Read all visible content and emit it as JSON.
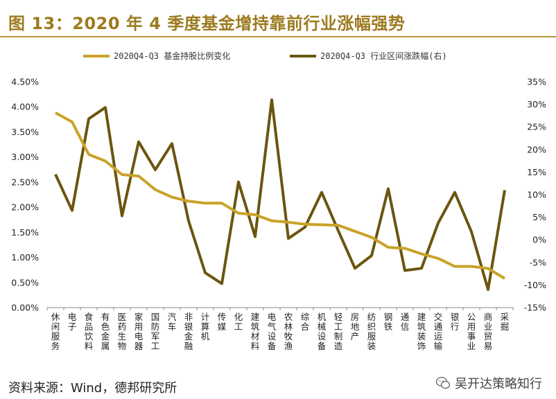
{
  "title": "图 13：2020 年 4 季度基金增持靠前行业涨幅强势",
  "source": "资料来源：Wind，德邦研究所",
  "watermark": "吴开达策略知行",
  "colors": {
    "series1": "#c9a227",
    "series2": "#6b5510",
    "title": "#9c7a1f"
  },
  "chart_data": {
    "type": "line",
    "categories": [
      "休闲服务",
      "电子",
      "食品饮料",
      "有色金属",
      "医药生物",
      "家用电器",
      "国防军工",
      "汽车",
      "非银金融",
      "计算机",
      "传媒",
      "化工",
      "建筑材料",
      "电气设备",
      "农林牧渔",
      "综合",
      "机械设备",
      "轻工制造",
      "房地产",
      "纺织服装",
      "钢铁",
      "通信",
      "建筑装饰",
      "交通运输",
      "银行",
      "公用事业",
      "商业贸易",
      "采掘"
    ],
    "series": [
      {
        "name": "2020Q4-Q3 基金持股比例变化",
        "axis": "left",
        "values": [
          3.88,
          3.7,
          3.05,
          2.92,
          2.65,
          2.62,
          2.35,
          2.2,
          2.12,
          2.08,
          2.08,
          1.88,
          1.85,
          1.73,
          1.7,
          1.66,
          1.65,
          1.64,
          1.52,
          1.4,
          1.2,
          1.18,
          1.07,
          0.98,
          0.82,
          0.82,
          0.78,
          0.58
        ]
      },
      {
        "name": "2020Q4-Q3 行业区间涨跌幅(右)",
        "axis": "right",
        "values": [
          14.5,
          6.5,
          26.8,
          29.3,
          5.3,
          21.7,
          15.5,
          21.3,
          4.2,
          -7.3,
          -9.7,
          12.8,
          0.7,
          31.0,
          0.3,
          2.8,
          10.5,
          2.0,
          -6.3,
          -3.5,
          11.3,
          -6.8,
          -6.3,
          3.7,
          10.5,
          1.8,
          -11.0,
          11.0
        ]
      }
    ],
    "left_axis": {
      "ticks": [
        "0.00%",
        "0.50%",
        "1.00%",
        "1.50%",
        "2.00%",
        "2.50%",
        "3.00%",
        "3.50%",
        "4.00%",
        "4.50%"
      ],
      "min": 0,
      "max": 4.5
    },
    "right_axis": {
      "ticks": [
        "-15%",
        "-10%",
        "-5%",
        "0%",
        "5%",
        "10%",
        "15%",
        "20%",
        "25%",
        "30%",
        "35%"
      ],
      "min": -15,
      "max": 35
    },
    "legend_position": "top",
    "grid": false
  }
}
